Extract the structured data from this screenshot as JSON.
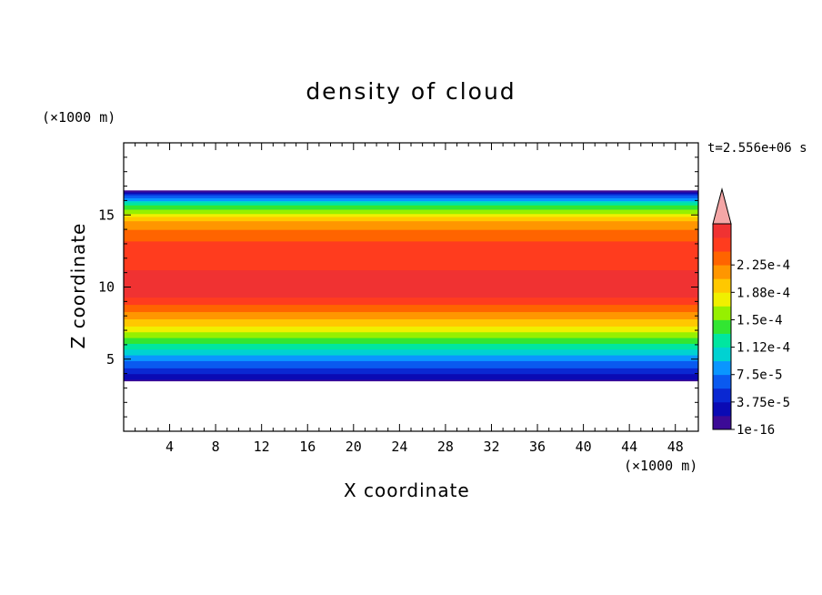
{
  "chart_data": {
    "type": "heatmap",
    "title": "density of cloud",
    "xlabel": "X coordinate",
    "ylabel": "Z coordinate",
    "x_unit": "(×1000 m)",
    "y_unit": "(×1000 m)",
    "time_label": "t=2.556e+06 s",
    "xlim": [
      0,
      50
    ],
    "ylim": [
      0,
      20
    ],
    "x_ticks": [
      4,
      8,
      12,
      16,
      20,
      24,
      28,
      32,
      36,
      40,
      44,
      48
    ],
    "y_ticks": [
      5,
      10,
      15
    ],
    "colorbar": {
      "levels": [
        "1e-16",
        "3.75e-5",
        "7.5e-5",
        "1.12e-4",
        "1.5e-4",
        "1.88e-4",
        "2.25e-4"
      ],
      "colors": [
        "#3c0a96",
        "#0a0ab4",
        "#0a28d2",
        "#0a5af0",
        "#0a96ff",
        "#00d2d2",
        "#00e6a0",
        "#32e632",
        "#96f000",
        "#f0f000",
        "#ffc800",
        "#ff9600",
        "#ff6400",
        "#ff3c1e",
        "#f03232"
      ],
      "overflow_color": "#f4a6a6"
    },
    "cloud_extent": {
      "z_bottom": 3.5,
      "z_top": 16.7
    },
    "vertical_profile": [
      {
        "z": 3.5,
        "level": 0
      },
      {
        "z": 3.8,
        "level": 1
      },
      {
        "z": 4.2,
        "level": 2
      },
      {
        "z": 4.6,
        "level": 3
      },
      {
        "z": 5.1,
        "level": 4
      },
      {
        "z": 5.5,
        "level": 5
      },
      {
        "z": 5.9,
        "level": 6
      },
      {
        "z": 6.3,
        "level": 7
      },
      {
        "z": 6.7,
        "level": 8
      },
      {
        "z": 7.1,
        "level": 9
      },
      {
        "z": 7.5,
        "level": 10
      },
      {
        "z": 8.0,
        "level": 11
      },
      {
        "z": 8.5,
        "level": 12
      },
      {
        "z": 9.0,
        "level": 13
      },
      {
        "z": 9.6,
        "level": 14
      },
      {
        "z": 12.8,
        "level": 13
      },
      {
        "z": 13.6,
        "level": 12
      },
      {
        "z": 14.3,
        "level": 11
      },
      {
        "z": 14.8,
        "level": 10
      },
      {
        "z": 15.2,
        "level": 8
      },
      {
        "z": 15.5,
        "level": 7
      },
      {
        "z": 15.8,
        "level": 6
      },
      {
        "z": 16.1,
        "level": 4
      },
      {
        "z": 16.3,
        "level": 3
      },
      {
        "z": 16.5,
        "level": 1
      },
      {
        "z": 16.7,
        "level": 0
      }
    ]
  }
}
